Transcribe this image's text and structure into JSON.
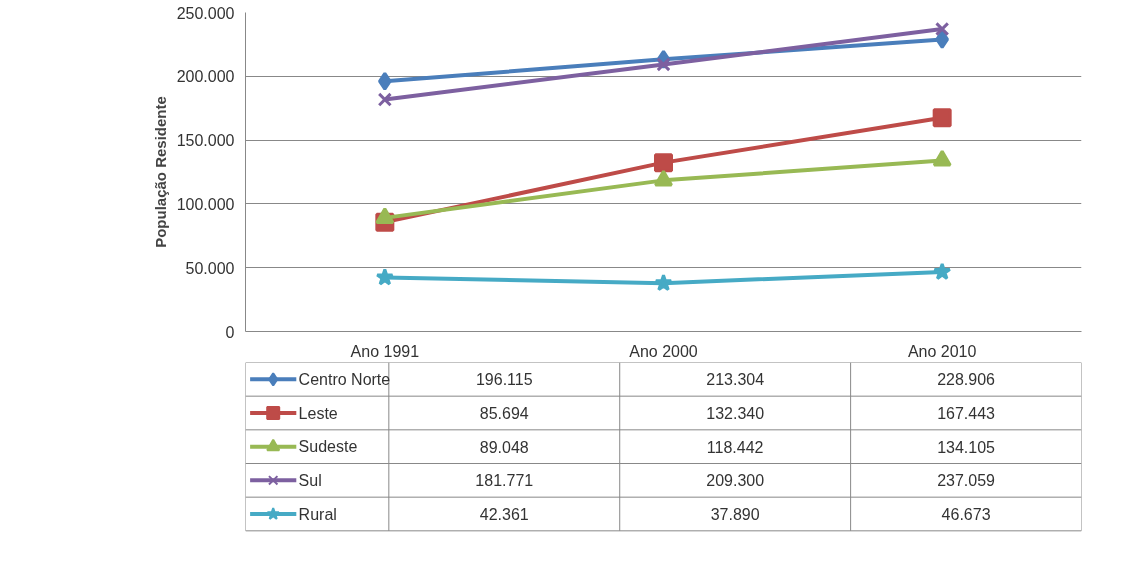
{
  "chart_data": {
    "type": "line",
    "ylabel": "População Residente",
    "categories": [
      "Ano 1991",
      "Ano 2000",
      "Ano 2010"
    ],
    "series": [
      {
        "name": "Centro Norte",
        "color": "#4a7ebb",
        "marker": "diamond",
        "values": [
          196115,
          213304,
          228906
        ],
        "value_labels": [
          "196.115",
          "213.304",
          "228.906"
        ]
      },
      {
        "name": "Leste",
        "color": "#be4b48",
        "marker": "square",
        "values": [
          85694,
          132340,
          167443
        ],
        "value_labels": [
          "85.694",
          "132.340",
          "167.443"
        ]
      },
      {
        "name": "Sudeste",
        "color": "#98b954",
        "marker": "triangle",
        "values": [
          89048,
          118442,
          134105
        ],
        "value_labels": [
          "89.048",
          "118.442",
          "134.105"
        ]
      },
      {
        "name": "Sul",
        "color": "#7d60a0",
        "marker": "cross",
        "values": [
          181771,
          209300,
          237059
        ],
        "value_labels": [
          "181.771",
          "209.300",
          "237.059"
        ]
      },
      {
        "name": "Rural",
        "color": "#46aac5",
        "marker": "star",
        "values": [
          42361,
          37890,
          46673
        ],
        "value_labels": [
          "42.361",
          "37.890",
          "46.673"
        ]
      }
    ],
    "ylim": [
      0,
      250000
    ],
    "yticks": [
      0,
      {
        "value": 50000,
        "label": "50.000"
      },
      {
        "value": 100000,
        "label": "100.000"
      },
      {
        "value": 150000,
        "label": "150.000"
      },
      {
        "value": 200000,
        "label": "200.000"
      },
      {
        "value": 250000,
        "label": "250.000"
      }
    ],
    "grid": "y",
    "legend": "bottom"
  }
}
